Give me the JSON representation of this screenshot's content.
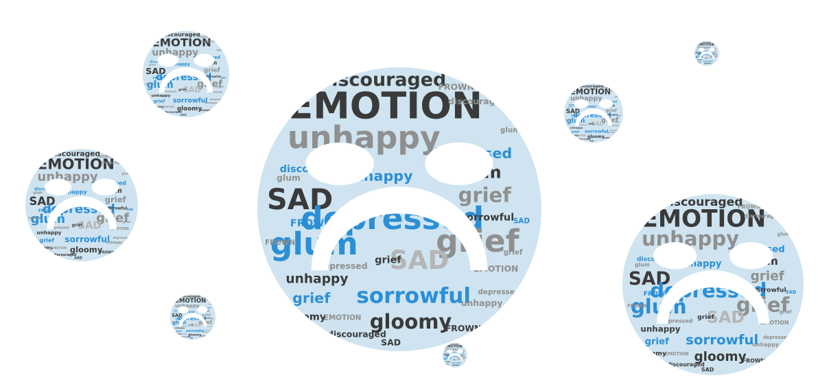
{
  "palette": {
    "background": "#ffffff",
    "face_fill": "#cfe4f0",
    "dark": "#3a3a3a",
    "gray": "#8f8f8f",
    "blue": "#2b8fd6",
    "light_gray": "#b5b5b5"
  },
  "words": {
    "emotion": "EMOTION",
    "discouraged": "discouraged",
    "unhappy": "unhappy",
    "sad": "SAD",
    "depressed": "depressed",
    "glum": "glum",
    "grief": "grief",
    "sorrowful": "sorrowful",
    "gloomy": "gloomy",
    "frown": "FROWN"
  },
  "faces": [
    {
      "name": "large-center",
      "expression": "sad"
    },
    {
      "name": "top-left",
      "expression": "sad"
    },
    {
      "name": "mid-left",
      "expression": "sad"
    },
    {
      "name": "bottom-right",
      "expression": "sad"
    },
    {
      "name": "small-upper-right",
      "expression": "sad"
    },
    {
      "name": "tiny-top-right",
      "expression": "sad"
    },
    {
      "name": "small-bottom-left",
      "expression": "sad"
    },
    {
      "name": "tiny-bottom-center",
      "expression": "sad"
    }
  ]
}
